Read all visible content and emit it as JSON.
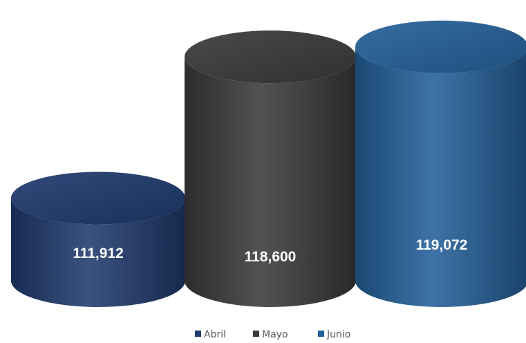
{
  "chart_data": {
    "type": "bar",
    "style": "3d-cylinder",
    "categories": [
      "Abril",
      "Mayo",
      "Junio"
    ],
    "values": [
      111912,
      118600,
      119072
    ],
    "value_labels": [
      "111,912",
      "118,600",
      "119,072"
    ],
    "colors": [
      "#1f3a6e",
      "#3a3a3a",
      "#24609a"
    ],
    "legend": {
      "placement": "bottom",
      "entries": [
        "Abril",
        "Mayo",
        "Junio"
      ]
    },
    "grid": false,
    "title": "",
    "xlabel": "",
    "ylabel": ""
  }
}
